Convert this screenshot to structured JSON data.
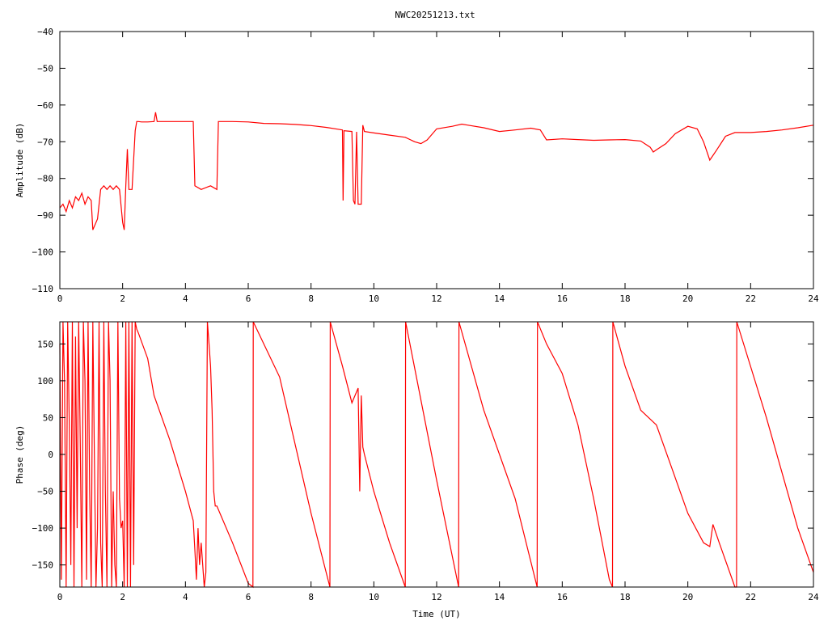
{
  "title": "NWC20251213.txt",
  "colors": {
    "trace": "#ff0000",
    "axis": "#000000",
    "background": "#ffffff"
  },
  "chart_data": [
    {
      "type": "line",
      "name": "amplitude-panel",
      "xlabel": "",
      "ylabel": "Amplitude (dB)",
      "xlim": [
        0,
        24
      ],
      "ylim": [
        -110,
        -40
      ],
      "xticks": [
        0,
        2,
        4,
        6,
        8,
        10,
        12,
        14,
        16,
        18,
        20,
        22,
        24
      ],
      "yticks": [
        -110,
        -100,
        -90,
        -80,
        -70,
        -60,
        -50,
        -40
      ],
      "grid": false,
      "series": [
        {
          "x": [
            0,
            0.1,
            0.2,
            0.3,
            0.4,
            0.5,
            0.6,
            0.7,
            0.8,
            0.9,
            1.0,
            1.05,
            1.1,
            1.2,
            1.3,
            1.4,
            1.5,
            1.6,
            1.7,
            1.8,
            1.9,
            2.0,
            2.05,
            2.1,
            2.15,
            2.2,
            2.3,
            2.4,
            2.45,
            2.5,
            2.6,
            2.8,
            3.0,
            3.05,
            3.1,
            3.5,
            4.0,
            4.25,
            4.3,
            4.5,
            4.8,
            5.0,
            5.05,
            5.5,
            6.0,
            6.5,
            7.0,
            7.5,
            8.0,
            8.5,
            9.0,
            9.02,
            9.05,
            9.3,
            9.35,
            9.4,
            9.45,
            9.5,
            9.6,
            9.65,
            9.7,
            10.0,
            10.5,
            11.0,
            11.3,
            11.5,
            11.7,
            12.0,
            12.5,
            12.8,
            13.0,
            13.5,
            14.0,
            14.5,
            15.0,
            15.3,
            15.5,
            16.0,
            16.5,
            17.0,
            17.5,
            18.0,
            18.5,
            18.8,
            18.9,
            19.0,
            19.3,
            19.6,
            20.0,
            20.3,
            20.5,
            20.7,
            20.9,
            21.2,
            21.5,
            22.0,
            22.5,
            23.0,
            23.5,
            24.0
          ],
          "y": [
            -88,
            -87,
            -89,
            -86,
            -88,
            -85,
            -86,
            -84,
            -87,
            -85,
            -86,
            -94,
            -93,
            -91,
            -83,
            -82,
            -83,
            -82,
            -83,
            -82,
            -83,
            -92,
            -94,
            -82,
            -72,
            -83,
            -83,
            -67,
            -64.5,
            -64.5,
            -64.6,
            -64.6,
            -64.5,
            -62,
            -64.5,
            -64.5,
            -64.5,
            -64.5,
            -82,
            -83,
            -82,
            -83,
            -64.5,
            -64.5,
            -64.6,
            -65,
            -65.1,
            -65.3,
            -65.6,
            -66.1,
            -66.8,
            -86,
            -67,
            -67.2,
            -86,
            -87,
            -67.3,
            -87,
            -87,
            -65.5,
            -67.2,
            -67.6,
            -68.2,
            -68.8,
            -70,
            -70.5,
            -69.5,
            -66.5,
            -65.8,
            -65.2,
            -65.5,
            -66.2,
            -67.2,
            -66.8,
            -66.3,
            -66.8,
            -69.5,
            -69.2,
            -69.4,
            -69.6,
            -69.5,
            -69.4,
            -69.8,
            -71.5,
            -72.8,
            -72.2,
            -70.5,
            -67.8,
            -65.8,
            -66.5,
            -70,
            -75,
            -72.5,
            -68.5,
            -67.5,
            -67.5,
            -67.2,
            -66.8,
            -66.2,
            -65.5
          ]
        }
      ]
    },
    {
      "type": "line",
      "name": "phase-panel",
      "xlabel": "Time (UT)",
      "ylabel": "Phase (deg)",
      "xlim": [
        0,
        24
      ],
      "ylim": [
        -180,
        180
      ],
      "xticks": [
        0,
        2,
        4,
        6,
        8,
        10,
        12,
        14,
        16,
        18,
        20,
        22,
        24
      ],
      "yticks": [
        -150,
        -100,
        -50,
        0,
        50,
        100,
        150
      ],
      "grid": false,
      "series": [
        {
          "x": [
            0,
            0.05,
            0.1,
            0.15,
            0.2,
            0.25,
            0.3,
            0.35,
            0.4,
            0.45,
            0.5,
            0.55,
            0.6,
            0.65,
            0.7,
            0.75,
            0.8,
            0.85,
            0.9,
            0.95,
            1.0,
            1.05,
            1.1,
            1.15,
            1.2,
            1.25,
            1.3,
            1.35,
            1.4,
            1.45,
            1.5,
            1.55,
            1.6,
            1.65,
            1.7,
            1.75,
            1.8,
            1.85,
            1.9,
            1.95,
            2.0,
            2.05,
            2.1,
            2.15,
            2.2,
            2.25,
            2.3,
            2.35,
            2.4,
            2.45,
            2.5,
            2.8,
            3.0,
            3.5,
            4.0,
            4.25,
            4.3,
            4.35,
            4.4,
            4.45,
            4.5,
            4.6,
            4.65,
            4.7,
            4.75,
            4.8,
            4.85,
            4.9,
            4.95,
            5.0,
            5.5,
            6.0,
            6.15,
            6.16,
            7.0,
            8.0,
            8.6,
            8.61,
            9.0,
            9.3,
            9.5,
            9.55,
            9.6,
            9.65,
            9.7,
            10.0,
            10.5,
            11.0,
            11.01,
            12.0,
            12.7,
            12.71,
            13.5,
            14.5,
            15.2,
            15.21,
            15.5,
            16.0,
            16.5,
            17.0,
            17.5,
            17.6,
            17.61,
            18.0,
            18.5,
            19.0,
            19.5,
            20.0,
            20.5,
            20.7,
            20.8,
            21.0,
            21.5,
            21.55,
            21.56,
            22.5,
            23.5,
            24.0
          ],
          "y": [
            150,
            -170,
            180,
            100,
            -180,
            180,
            40,
            -150,
            180,
            -180,
            160,
            -100,
            180,
            20,
            -180,
            180,
            100,
            -170,
            180,
            -50,
            -180,
            180,
            0,
            -180,
            -100,
            180,
            -120,
            -180,
            180,
            -50,
            -180,
            180,
            100,
            -180,
            -50,
            -150,
            -180,
            180,
            -60,
            -100,
            -90,
            -180,
            180,
            -180,
            180,
            -180,
            180,
            -150,
            180,
            170,
            165,
            130,
            80,
            20,
            -50,
            -90,
            -130,
            -170,
            -100,
            -150,
            -120,
            -180,
            -160,
            180,
            150,
            120,
            60,
            -50,
            -70,
            -70,
            -120,
            -175,
            -180,
            180,
            105,
            -80,
            -180,
            180,
            120,
            70,
            90,
            -50,
            80,
            10,
            0,
            -50,
            -120,
            -180,
            180,
            -35,
            -180,
            180,
            60,
            -60,
            -180,
            180,
            150,
            110,
            40,
            -60,
            -170,
            -180,
            180,
            120,
            60,
            40,
            -20,
            -80,
            -120,
            -125,
            -95,
            -120,
            -180,
            -180,
            180,
            50,
            -100,
            -160
          ]
        }
      ]
    }
  ]
}
